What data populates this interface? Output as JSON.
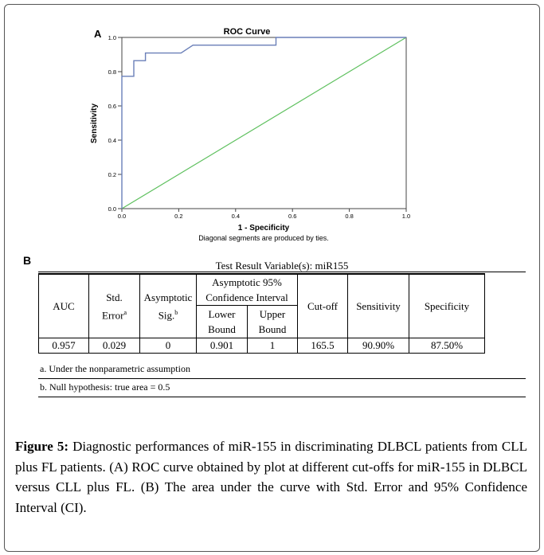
{
  "panel_a": {
    "label": "A",
    "chart_data": {
      "type": "line",
      "title": "ROC Curve",
      "xlabel": "1 - Specificity",
      "ylabel": "Sensitivity",
      "xlim": [
        0,
        1
      ],
      "ylim": [
        0,
        1
      ],
      "x_ticks": [
        "0.0",
        "0.2",
        "0.4",
        "0.6",
        "0.8",
        "1.0"
      ],
      "y_ticks": [
        "0.0",
        "0.2",
        "0.4",
        "0.6",
        "0.8",
        "1.0"
      ],
      "series": [
        {
          "color": "#6a7fb8",
          "x": [
            0,
            0,
            0.042,
            0.042,
            0.083,
            0.083,
            0.208,
            0.25,
            0.542,
            0.542,
            1.0
          ],
          "y": [
            0,
            0.773,
            0.773,
            0.864,
            0.864,
            0.909,
            0.909,
            0.955,
            0.955,
            1.0,
            1.0
          ]
        },
        {
          "color": "#5ec05e",
          "x": [
            0,
            1
          ],
          "y": [
            0,
            1
          ]
        }
      ],
      "footnote": "Diagonal segments are produced by ties."
    }
  },
  "panel_b": {
    "label": "B",
    "title": "Test Result Variable(s):  miR155",
    "headers": {
      "auc": "AUC",
      "std_error": "Std.",
      "std_error_2": "Error",
      "std_error_sup": "a",
      "asymptotic_sig": "Asymptotic",
      "asymptotic_sig_2": "Sig.",
      "asymptotic_sig_sup": "b",
      "ci_1": "Asymptotic 95%",
      "ci_2": "Confidence Interval",
      "lower_1": "Lower",
      "lower_2": "Bound",
      "upper_1": "Upper",
      "upper_2": "Bound",
      "cutoff": "Cut-off",
      "sensitivity": "Sensitivity",
      "specificity": "Specificity"
    },
    "row": {
      "auc": "0.957",
      "std_error": "0.029",
      "asymptotic_sig": "0",
      "lower_bound": "0.901",
      "upper_bound": "1",
      "cutoff": "165.5",
      "sensitivity": "90.90%",
      "specificity": "87.50%"
    },
    "notes": {
      "a": "a. Under the nonparametric assumption",
      "b": "b. Null hypothesis: true area = 0.5"
    }
  },
  "caption": {
    "lead": "Figure 5:",
    "text": " Diagnostic performances of miR-155 in discriminating DLBCL patients from CLL plus FL patients. (A) ROC curve obtained by plot at different cut-offs for miR-155 in DLBCL versus CLL plus FL. (B) The area under the curve with Std. Error and 95% Confidence Interval (CI)."
  }
}
